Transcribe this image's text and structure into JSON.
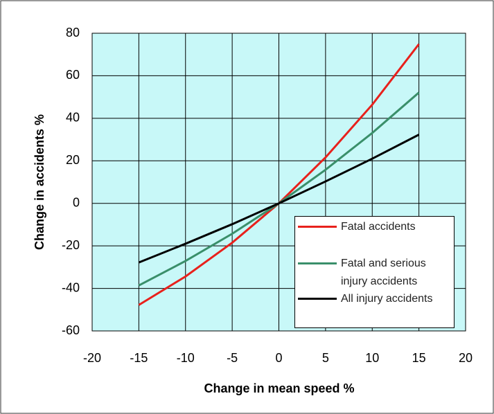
{
  "chart_data": {
    "type": "line",
    "xlabel": "Change in mean speed %",
    "ylabel": "Change in accidents %",
    "x": [
      -15,
      -10,
      -5,
      0,
      5,
      10,
      15
    ],
    "series": [
      {
        "name": "Fatal accidents",
        "color": "#e8211c",
        "values": [
          -47.8,
          -34.4,
          -18.5,
          0,
          21.6,
          46.4,
          74.9
        ]
      },
      {
        "name": "Fatal and serious injury accidents",
        "color": "#3a8f6a",
        "values": [
          -38.6,
          -27.1,
          -14.3,
          0,
          15.8,
          33.1,
          52.1
        ]
      },
      {
        "name": "All injury accidents",
        "color": "#000000",
        "values": [
          -27.8,
          -19.0,
          -9.8,
          0,
          10.3,
          21.0,
          32.3
        ]
      }
    ],
    "xlim": [
      -20,
      20
    ],
    "xticks": [
      -20,
      -15,
      -10,
      -5,
      0,
      5,
      10,
      15,
      20
    ],
    "ylim": [
      -60,
      80
    ],
    "yticks": [
      -60,
      -40,
      -20,
      0,
      20,
      40,
      60,
      80
    ],
    "grid": true,
    "background": "#c8f8f8",
    "legend": "lower right"
  }
}
